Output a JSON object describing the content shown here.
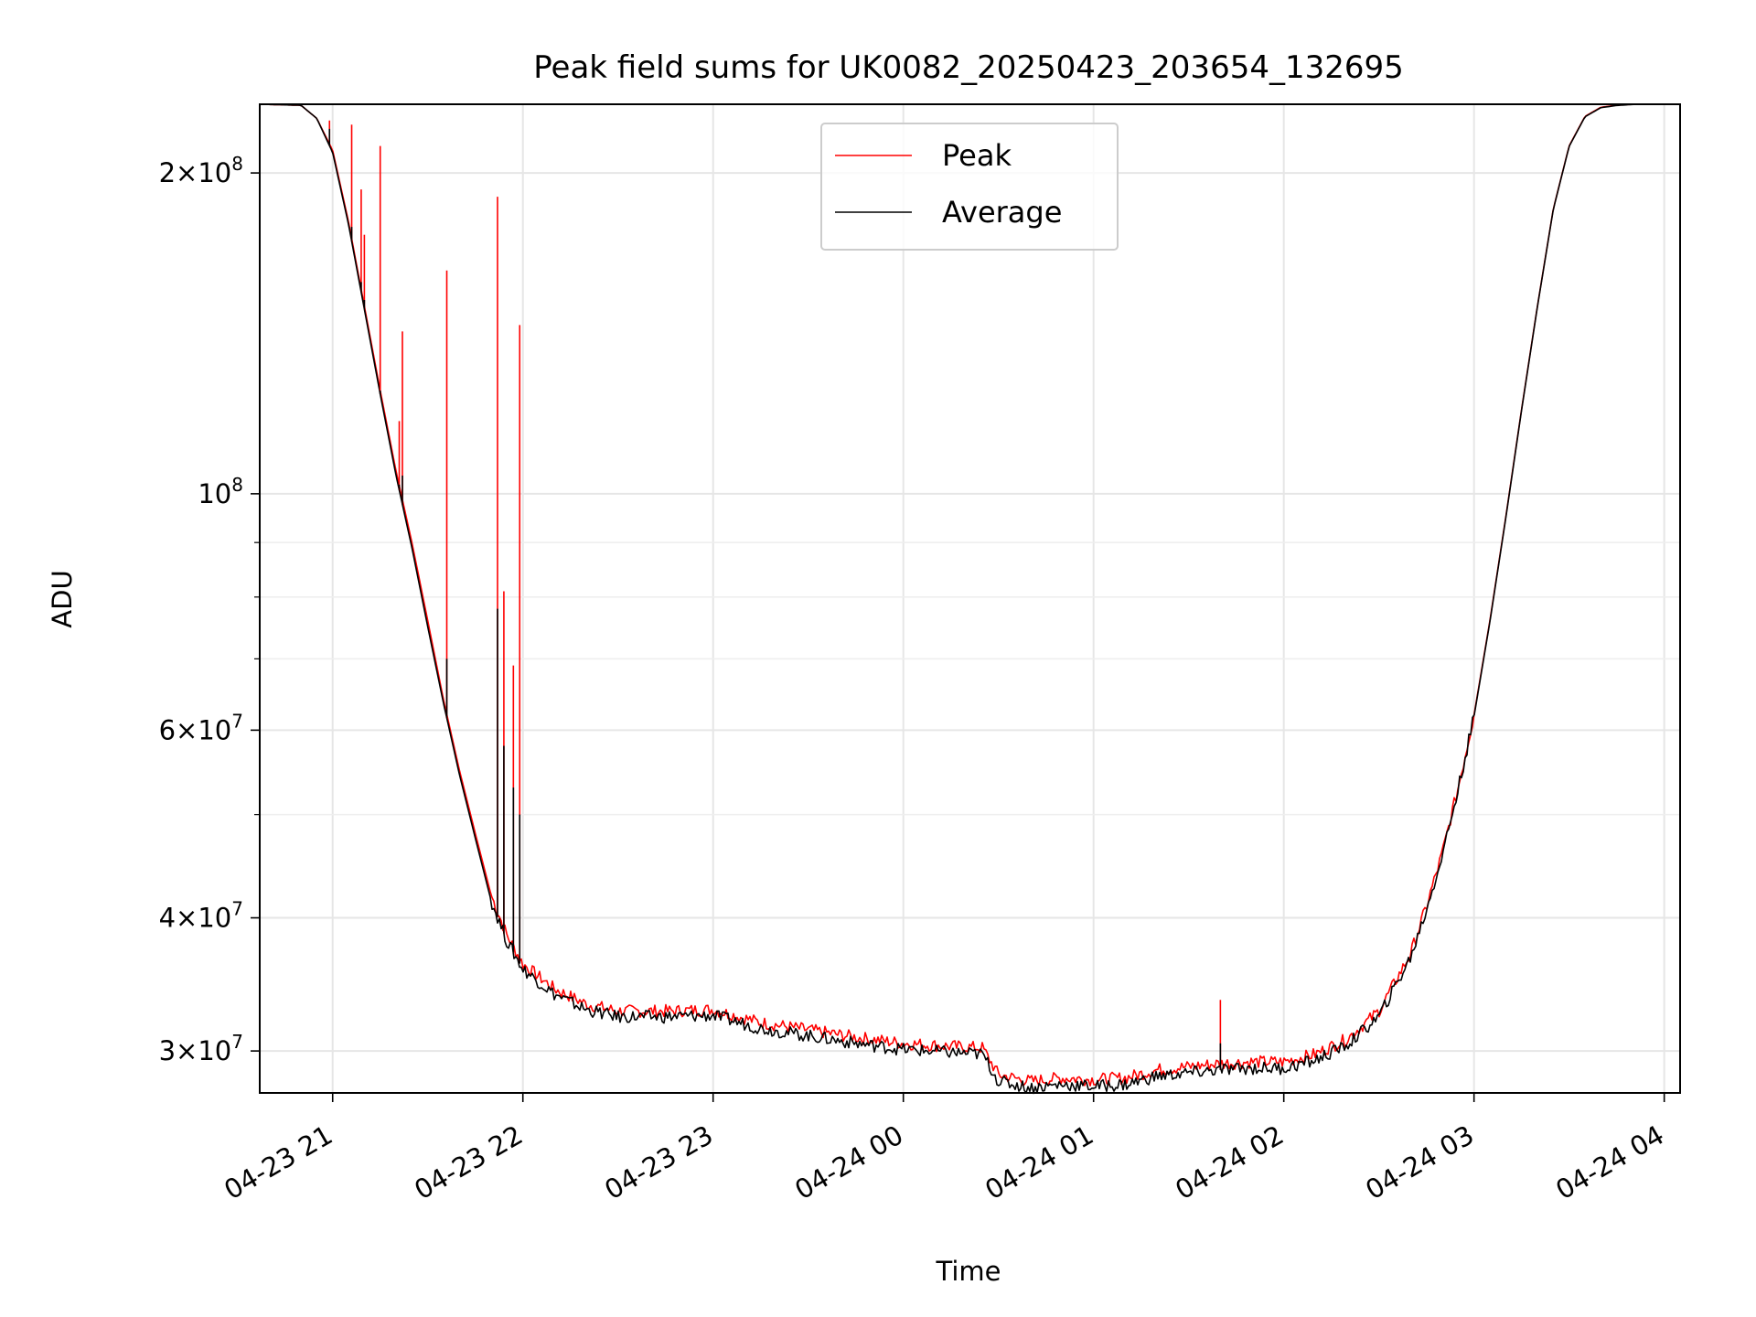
{
  "chart_data": {
    "type": "line",
    "title": "Peak field sums for UK0082_20250423_203654_132695",
    "xlabel": "Time",
    "ylabel": "ADU",
    "yscale": "log",
    "xlim": [
      "2025-04-23 20:37",
      "2025-04-24 04:05"
    ],
    "ylim": [
      27400000,
      232000000
    ],
    "x_ticks": [
      "04-23 21",
      "04-23 22",
      "04-23 23",
      "04-24 00",
      "04-24 01",
      "04-24 02",
      "04-24 03",
      "04-24 04"
    ],
    "x_tick_times": [
      "2025-04-23 21:00",
      "2025-04-23 22:00",
      "2025-04-23 23:00",
      "2025-04-24 00:00",
      "2025-04-24 01:00",
      "2025-04-24 02:00",
      "2025-04-24 03:00",
      "2025-04-24 04:00"
    ],
    "y_ticks": [
      {
        "value": 200000000,
        "mant": "2",
        "exp": "8"
      },
      {
        "value": 100000000,
        "mant": "",
        "exp": "8"
      },
      {
        "value": 60000000,
        "mant": "6",
        "exp": "7"
      },
      {
        "value": 40000000,
        "mant": "4",
        "exp": "7"
      },
      {
        "value": 30000000,
        "mant": "3",
        "exp": "7"
      }
    ],
    "y_minor_ticks": [
      50000000,
      70000000,
      80000000,
      90000000
    ],
    "grid": true,
    "legend_position": "top-center",
    "series": [
      {
        "name": "Peak",
        "color": "#ff0000",
        "x": [
          "2025-04-23 20:37",
          "2025-04-23 20:50",
          "2025-04-23 20:55",
          "2025-04-23 21:00",
          "2025-04-23 21:05",
          "2025-04-23 21:10",
          "2025-04-23 21:15",
          "2025-04-23 21:20",
          "2025-04-23 21:25",
          "2025-04-23 21:30",
          "2025-04-23 21:35",
          "2025-04-23 21:40",
          "2025-04-23 21:45",
          "2025-04-23 21:50",
          "2025-04-23 21:55",
          "2025-04-23 22:00",
          "2025-04-23 22:10",
          "2025-04-23 22:20",
          "2025-04-23 22:30",
          "2025-04-23 22:45",
          "2025-04-23 23:00",
          "2025-04-23 23:15",
          "2025-04-23 23:30",
          "2025-04-23 23:45",
          "2025-04-24 00:00",
          "2025-04-24 00:15",
          "2025-04-24 00:25",
          "2025-04-24 00:30",
          "2025-04-24 00:40",
          "2025-04-24 00:50",
          "2025-04-24 01:00",
          "2025-04-24 01:10",
          "2025-04-24 01:20",
          "2025-04-24 01:30",
          "2025-04-24 01:40",
          "2025-04-24 01:50",
          "2025-04-24 02:00",
          "2025-04-24 02:10",
          "2025-04-24 02:20",
          "2025-04-24 02:30",
          "2025-04-24 02:40",
          "2025-04-24 02:45",
          "2025-04-24 02:50",
          "2025-04-24 02:55",
          "2025-04-24 03:00",
          "2025-04-24 03:05",
          "2025-04-24 03:10",
          "2025-04-24 03:15",
          "2025-04-24 03:20",
          "2025-04-24 03:25",
          "2025-04-24 03:30",
          "2025-04-24 03:35",
          "2025-04-24 03:40",
          "2025-04-24 03:45",
          "2025-04-24 03:50",
          "2025-04-24 04:00",
          "2025-04-24 04:05"
        ],
        "y": [
          232000000,
          231500000,
          225000000,
          210000000,
          180000000,
          150000000,
          125000000,
          105000000,
          90000000,
          76000000,
          64000000,
          55000000,
          48000000,
          42000000,
          38500000,
          36200000,
          34300000,
          33200000,
          32700000,
          32700000,
          32800000,
          31900000,
          31400000,
          30900000,
          30500000,
          30300000,
          30200000,
          28500000,
          28100000,
          28300000,
          28200000,
          28300000,
          28800000,
          29000000,
          29200000,
          29300000,
          29300000,
          29800000,
          30800000,
          32700000,
          37000000,
          41000000,
          46000000,
          53000000,
          62000000,
          76000000,
          95000000,
          120000000,
          150000000,
          185000000,
          212000000,
          226000000,
          230500000,
          231500000,
          232000000,
          232000000,
          232000000
        ]
      },
      {
        "name": "Average",
        "color": "#000000",
        "x": [
          "2025-04-23 20:37",
          "2025-04-23 20:50",
          "2025-04-23 20:55",
          "2025-04-23 21:00",
          "2025-04-23 21:05",
          "2025-04-23 21:10",
          "2025-04-23 21:15",
          "2025-04-23 21:20",
          "2025-04-23 21:25",
          "2025-04-23 21:30",
          "2025-04-23 21:35",
          "2025-04-23 21:40",
          "2025-04-23 21:45",
          "2025-04-23 21:50",
          "2025-04-23 21:55",
          "2025-04-23 22:00",
          "2025-04-23 22:10",
          "2025-04-23 22:20",
          "2025-04-23 22:30",
          "2025-04-23 22:45",
          "2025-04-23 23:00",
          "2025-04-23 23:15",
          "2025-04-23 23:30",
          "2025-04-23 23:45",
          "2025-04-24 00:00",
          "2025-04-24 00:15",
          "2025-04-24 00:25",
          "2025-04-24 00:30",
          "2025-04-24 00:40",
          "2025-04-24 00:50",
          "2025-04-24 01:00",
          "2025-04-24 01:10",
          "2025-04-24 01:20",
          "2025-04-24 01:30",
          "2025-04-24 01:40",
          "2025-04-24 01:50",
          "2025-04-24 02:00",
          "2025-04-24 02:10",
          "2025-04-24 02:20",
          "2025-04-24 02:30",
          "2025-04-24 02:40",
          "2025-04-24 02:45",
          "2025-04-24 02:50",
          "2025-04-24 02:55",
          "2025-04-24 03:00",
          "2025-04-24 03:05",
          "2025-04-24 03:10",
          "2025-04-24 03:15",
          "2025-04-24 03:20",
          "2025-04-24 03:25",
          "2025-04-24 03:30",
          "2025-04-24 03:35",
          "2025-04-24 03:40",
          "2025-04-24 03:45",
          "2025-04-24 03:50",
          "2025-04-24 04:00",
          "2025-04-24 04:05"
        ],
        "y": [
          232000000,
          231500000,
          225000000,
          209000000,
          179000000,
          149000000,
          124000000,
          104000000,
          89000000,
          75000000,
          63500000,
          54500000,
          47500000,
          41500000,
          38000000,
          35800000,
          33900000,
          32800000,
          32300000,
          32300000,
          32400000,
          31500000,
          31000000,
          30500000,
          30100000,
          29900000,
          29800000,
          28100000,
          27700000,
          27900000,
          27800000,
          27900000,
          28400000,
          28600000,
          28800000,
          28900000,
          28900000,
          29400000,
          30400000,
          32300000,
          36700000,
          40700000,
          45800000,
          52800000,
          61800000,
          75800000,
          94800000,
          119800000,
          149800000,
          184800000,
          211800000,
          225800000,
          230300000,
          231400000,
          231900000,
          232000000,
          232000000
        ]
      }
    ],
    "spikes": [
      {
        "x": "2025-04-23 20:59",
        "peak": 224000000,
        "avg": 220000000
      },
      {
        "x": "2025-04-23 21:06",
        "peak": 222000000,
        "avg": 178000000
      },
      {
        "x": "2025-04-23 21:09",
        "peak": 193000000,
        "avg": 158000000
      },
      {
        "x": "2025-04-23 21:10",
        "peak": 175000000,
        "avg": 152000000
      },
      {
        "x": "2025-04-23 21:15",
        "peak": 212000000,
        "avg": 125000000
      },
      {
        "x": "2025-04-23 21:21",
        "peak": 117000000,
        "avg": 102000000
      },
      {
        "x": "2025-04-23 21:22",
        "peak": 142000000,
        "avg": 104000000
      },
      {
        "x": "2025-04-23 21:36",
        "peak": 162000000,
        "avg": 70000000
      },
      {
        "x": "2025-04-23 21:52",
        "peak": 190000000,
        "avg": 78000000
      },
      {
        "x": "2025-04-23 21:54",
        "peak": 81000000,
        "avg": 58000000
      },
      {
        "x": "2025-04-23 21:57",
        "peak": 69000000,
        "avg": 53000000
      },
      {
        "x": "2025-04-23 21:59",
        "peak": 144000000,
        "avg": 50000000
      },
      {
        "x": "2025-04-24 01:40",
        "peak": 33500000,
        "avg": 30500000
      }
    ]
  }
}
